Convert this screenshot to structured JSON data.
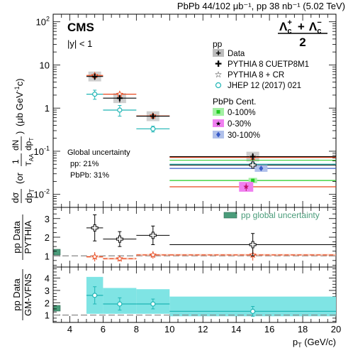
{
  "header": {
    "lumi": "PbPb 44/102 μb⁻¹, pp 38 nb⁻¹ (5.02 TeV)",
    "experiment": "CMS",
    "rapidity": "|y| < 1",
    "particle": "Λc⁺ + Λc⁻",
    "particle_num_a": "Λ",
    "particle_num_a_sup": "+",
    "particle_num_a_sub": "c",
    "particle_num_plus": "+",
    "particle_num_b": "Λ",
    "particle_num_b_sup": "−",
    "particle_num_b_sub": "c",
    "particle_den": "2"
  },
  "legend_pp": {
    "title": "pp",
    "items": [
      {
        "label": "Data",
        "color": "#000000",
        "marker": "filled-cross"
      },
      {
        "label": "PYTHIA 8 CUETP8M1",
        "color": "#000000",
        "marker": "open-cross"
      },
      {
        "label": "PYTHIA 8 + CR",
        "color": "#e8471c",
        "marker": "open-star"
      },
      {
        "label": "JHEP 12 (2017) 021",
        "color": "#1fb5b5",
        "marker": "open-circle"
      }
    ]
  },
  "legend_pbpb": {
    "title": "PbPb Cent.",
    "items": [
      {
        "label": "0-100%",
        "color": "#22cc22",
        "box": "#a3f0a3",
        "marker": "square"
      },
      {
        "label": "0-30%",
        "color": "#e01e8c",
        "box": "#f080f0",
        "marker": "star"
      },
      {
        "label": "30-100%",
        "color": "#3a5cc8",
        "box": "#b0c0ea",
        "marker": "diamond"
      }
    ]
  },
  "global_uncertainty": {
    "title": "Global uncertainty",
    "pp": "pp: 21%",
    "pbpb": "PbPb: 31%"
  },
  "ratio1_legend": {
    "label": "pp global uncertainty",
    "color": "#4a9c7a"
  },
  "axes": {
    "xlabel": "p",
    "xlabel_sub": "T",
    "xlabel_unit": " (GeV/c)",
    "top_ylabel": "dσ/dpT (or 1/TAA dN/dpT) (μb GeV⁻¹c)",
    "top_ylabel_parts": {
      "dsigma": "dσ",
      "dpt": "dp",
      "dpt_sub": "T",
      "open": "(or",
      "one": "1",
      "taa": "T",
      "taa_sub": "AA",
      "dn": "dN",
      "dpt2": "dp",
      "dpt2_sub": "T",
      "close": ")",
      "unit": "(μb GeV",
      "unit_sup": "-1",
      "unit_end": "c)"
    },
    "mid_ylabel_num": "pp Data",
    "mid_ylabel_den": "PYTHIA",
    "bot_ylabel_num": "pp Data",
    "bot_ylabel_den": "GM-VFNS",
    "xticks": [
      "4",
      "6",
      "8",
      "10",
      "12",
      "14",
      "16",
      "18",
      "20"
    ],
    "top_yticks": [
      {
        "base": "10",
        "exp": "-2"
      },
      {
        "base": "10",
        "exp": "-1"
      },
      {
        "base": "1",
        "exp": ""
      },
      {
        "base": "10",
        "exp": ""
      },
      {
        "base": "10",
        "exp": "2"
      }
    ],
    "mid_yticks": [
      "1",
      "2",
      "3"
    ],
    "bot_yticks": [
      "1",
      "2",
      "3",
      "4"
    ]
  },
  "chart_data": [
    {
      "type": "scatter",
      "panel": "cross-section",
      "xlim": [
        3,
        20
      ],
      "ylim": [
        0.005,
        150
      ],
      "yscale": "log",
      "xlabel": "pT (GeV/c)",
      "ylabel": "dσ/dpT (or 1/TAA dN/dpT) (μb GeV⁻¹c)",
      "series": [
        {
          "name": "Data",
          "bins": [
            [
              5,
              6
            ],
            [
              6,
              8
            ],
            [
              8,
              10
            ],
            [
              10,
              20
            ]
          ],
          "x": [
            5.5,
            7,
            9,
            15
          ],
          "y": [
            5.4,
            1.7,
            0.65,
            0.075
          ],
          "yerr": [
            0.9,
            0.35,
            0.09,
            0.015
          ]
        },
        {
          "name": "PYTHIA 8 CUETP8M1",
          "bins": [
            [
              10,
              20
            ]
          ],
          "x": [
            15
          ],
          "y": [
            0.048
          ],
          "yerr": [
            0
          ]
        },
        {
          "name": "PYTHIA 8 + CR",
          "bins": [
            [
              5,
              6
            ],
            [
              6,
              8
            ],
            [
              8,
              10
            ],
            [
              10,
              20
            ]
          ],
          "x": [
            5.5,
            7,
            9,
            15
          ],
          "y": [
            5.7,
            2.1,
            0.66,
            0.072
          ]
        },
        {
          "name": "JHEP 12 (2017) 021",
          "bins": [
            [
              5,
              6
            ],
            [
              6,
              8
            ],
            [
              8,
              10
            ],
            [
              10,
              20
            ]
          ],
          "x": [
            5.5,
            7,
            9,
            15
          ],
          "y": [
            2.1,
            0.9,
            0.33,
            0.05
          ],
          "yerr": [
            0.5,
            0.25,
            0.05,
            0.005
          ]
        },
        {
          "name": "0-100%",
          "bins": [
            [
              10,
              20
            ]
          ],
          "x": [
            15
          ],
          "y": [
            0.021
          ],
          "yerr": [
            0.003
          ]
        },
        {
          "name": "0-30%",
          "bins": [
            [
              10,
              20
            ]
          ],
          "x": [
            14.6
          ],
          "y": [
            0.015
          ],
          "yerr": [
            0.003
          ]
        },
        {
          "name": "30-100%",
          "bins": [
            [
              10,
              20
            ]
          ],
          "x": [
            15.5
          ],
          "y": [
            0.04
          ],
          "yerr": [
            0.005
          ]
        }
      ]
    },
    {
      "type": "scatter",
      "panel": "ratio-pythia",
      "xlim": [
        3,
        20
      ],
      "ylim": [
        0.4,
        3.6
      ],
      "reference": 1,
      "series": [
        {
          "name": "PYTHIA 8 CUETP8M1",
          "bins": [
            [
              5,
              6
            ],
            [
              6,
              8
            ],
            [
              8,
              10
            ],
            [
              10,
              20
            ]
          ],
          "x": [
            5.5,
            7,
            9,
            15
          ],
          "y": [
            2.5,
            1.9,
            2.1,
            1.6
          ],
          "yerr": [
            0.7,
            0.4,
            0.5,
            0.6
          ]
        },
        {
          "name": "PYTHIA 8 + CR",
          "bins": [
            [
              5,
              6
            ],
            [
              6,
              8
            ],
            [
              8,
              10
            ],
            [
              10,
              20
            ]
          ],
          "x": [
            5.5,
            7,
            9,
            15
          ],
          "y": [
            0.95,
            0.85,
            1.05,
            1.05
          ],
          "yerr": [
            0.25,
            0.15,
            0.2,
            0.3
          ]
        }
      ]
    },
    {
      "type": "scatter",
      "panel": "ratio-gmvfns",
      "xlim": [
        3,
        20
      ],
      "ylim": [
        0.4,
        4.9
      ],
      "reference": 1,
      "series": [
        {
          "name": "JHEP 12 (2017) 021",
          "bins": [
            [
              5,
              6
            ],
            [
              6,
              8
            ],
            [
              8,
              10
            ],
            [
              10,
              20
            ]
          ],
          "x": [
            5.5,
            7,
            9,
            15
          ],
          "y": [
            2.6,
            1.9,
            1.9,
            1.3
          ],
          "yerr": [
            0.7,
            0.5,
            0.4,
            0.4
          ],
          "band_lo": [
            1.1,
            1.1,
            1.1,
            0.9
          ],
          "band_hi": [
            4.1,
            3.2,
            3.1,
            2.5
          ]
        }
      ]
    }
  ]
}
